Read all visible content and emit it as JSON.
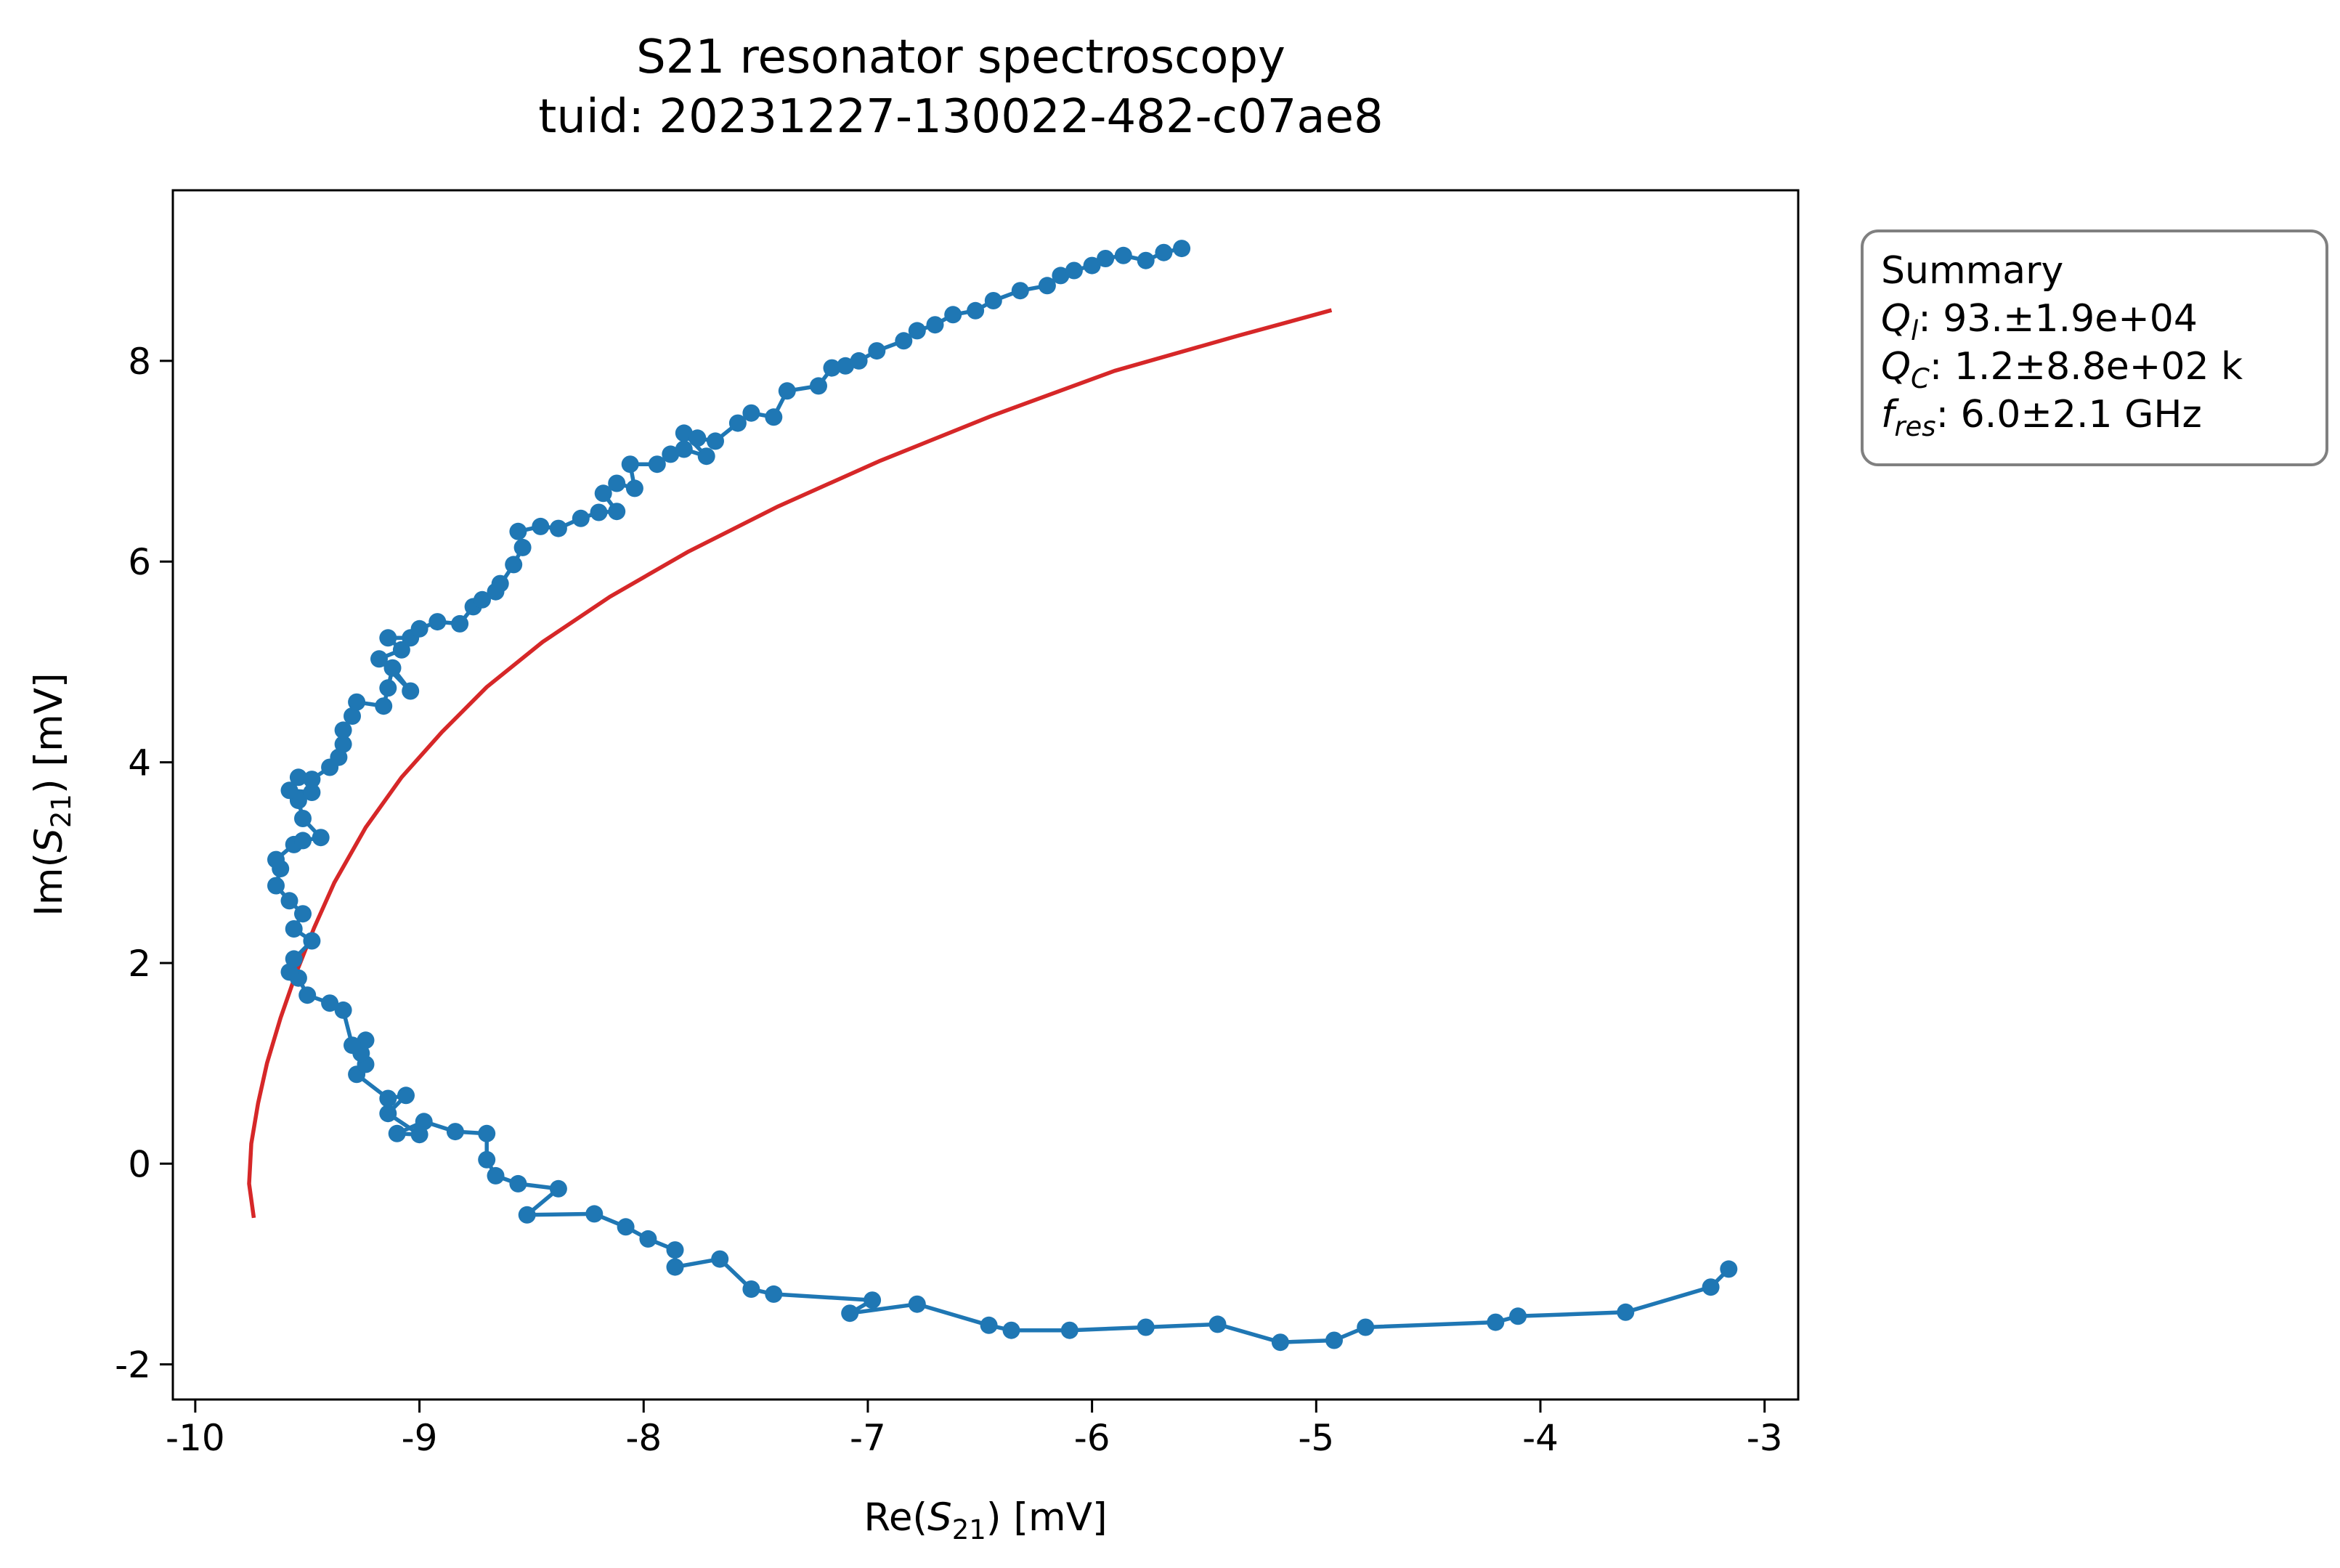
{
  "chart_data": {
    "type": "line",
    "title": "S21 resonator spectroscopy",
    "subtitle": "tuid: 20231227-130022-482-c07ae8",
    "xlabel": {
      "main": "Re(",
      "symbol": "S",
      "sub": "21",
      "tail": ") [mV]"
    },
    "ylabel": {
      "main": "Im(",
      "symbol": "S",
      "sub": "21",
      "tail": ") [mV]"
    },
    "xlim": [
      -10.1,
      -2.85
    ],
    "ylim": [
      -2.35,
      9.7
    ],
    "xticks": [
      -10,
      -9,
      -8,
      -7,
      -6,
      -5,
      -4,
      -3
    ],
    "yticks": [
      -2,
      0,
      2,
      4,
      6,
      8
    ],
    "xtick_labels": [
      "-10",
      "-9",
      "-8",
      "-7",
      "-6",
      "-5",
      "-4",
      "-3"
    ],
    "ytick_labels": [
      "-2",
      "0",
      "2",
      "4",
      "6",
      "8"
    ],
    "grid": false,
    "colors": {
      "data": "#1f77b4",
      "fit": "#d62728"
    },
    "series": [
      {
        "style": "line-marker",
        "points": [
          [
            -3.16,
            -1.05
          ],
          [
            -3.24,
            -1.23
          ],
          [
            -3.62,
            -1.48
          ],
          [
            -4.1,
            -1.52
          ],
          [
            -4.2,
            -1.58
          ],
          [
            -4.78,
            -1.63
          ],
          [
            -4.92,
            -1.76
          ],
          [
            -5.16,
            -1.78
          ],
          [
            -5.44,
            -1.6
          ],
          [
            -5.76,
            -1.63
          ],
          [
            -6.1,
            -1.66
          ],
          [
            -6.36,
            -1.66
          ],
          [
            -6.46,
            -1.61
          ],
          [
            -6.78,
            -1.4
          ],
          [
            -7.08,
            -1.49
          ],
          [
            -6.98,
            -1.36
          ],
          [
            -7.42,
            -1.3
          ],
          [
            -7.52,
            -1.25
          ],
          [
            -7.66,
            -0.95
          ],
          [
            -7.86,
            -1.03
          ],
          [
            -7.86,
            -0.86
          ],
          [
            -7.98,
            -0.75
          ],
          [
            -8.08,
            -0.63
          ],
          [
            -8.22,
            -0.5
          ],
          [
            -8.52,
            -0.51
          ],
          [
            -8.38,
            -0.25
          ],
          [
            -8.56,
            -0.2
          ],
          [
            -8.66,
            -0.12
          ],
          [
            -8.7,
            0.04
          ],
          [
            -8.7,
            0.3
          ],
          [
            -8.84,
            0.32
          ],
          [
            -8.98,
            0.42
          ],
          [
            -9.1,
            0.3
          ],
          [
            -9.0,
            0.29
          ],
          [
            -9.14,
            0.5
          ],
          [
            -9.06,
            0.68
          ],
          [
            -9.14,
            0.65
          ],
          [
            -9.28,
            0.89
          ],
          [
            -9.24,
            0.99
          ],
          [
            -9.26,
            1.1
          ],
          [
            -9.24,
            1.23
          ],
          [
            -9.3,
            1.18
          ],
          [
            -9.34,
            1.53
          ],
          [
            -9.4,
            1.6
          ],
          [
            -9.5,
            1.68
          ],
          [
            -9.54,
            1.85
          ],
          [
            -9.58,
            1.91
          ],
          [
            -9.56,
            2.04
          ],
          [
            -9.48,
            2.22
          ],
          [
            -9.56,
            2.34
          ],
          [
            -9.52,
            2.49
          ],
          [
            -9.58,
            2.62
          ],
          [
            -9.64,
            2.77
          ],
          [
            -9.62,
            2.94
          ],
          [
            -9.64,
            3.03
          ],
          [
            -9.56,
            3.18
          ],
          [
            -9.52,
            3.22
          ],
          [
            -9.44,
            3.25
          ],
          [
            -9.52,
            3.44
          ],
          [
            -9.54,
            3.62
          ],
          [
            -9.48,
            3.7
          ],
          [
            -9.58,
            3.72
          ],
          [
            -9.54,
            3.85
          ],
          [
            -9.48,
            3.83
          ],
          [
            -9.4,
            3.95
          ],
          [
            -9.36,
            4.05
          ],
          [
            -9.34,
            4.18
          ],
          [
            -9.34,
            4.32
          ],
          [
            -9.3,
            4.46
          ],
          [
            -9.28,
            4.6
          ],
          [
            -9.16,
            4.56
          ],
          [
            -9.14,
            4.74
          ],
          [
            -9.12,
            4.94
          ],
          [
            -9.04,
            4.71
          ],
          [
            -9.18,
            5.03
          ],
          [
            -9.08,
            5.12
          ],
          [
            -9.14,
            5.24
          ],
          [
            -9.04,
            5.24
          ],
          [
            -9.0,
            5.33
          ],
          [
            -8.92,
            5.4
          ],
          [
            -8.82,
            5.38
          ],
          [
            -8.76,
            5.55
          ],
          [
            -8.72,
            5.62
          ],
          [
            -8.64,
            5.78
          ],
          [
            -8.66,
            5.7
          ],
          [
            -8.58,
            5.97
          ],
          [
            -8.54,
            6.14
          ],
          [
            -8.56,
            6.3
          ],
          [
            -8.46,
            6.35
          ],
          [
            -8.38,
            6.33
          ],
          [
            -8.28,
            6.43
          ],
          [
            -8.2,
            6.49
          ],
          [
            -8.12,
            6.5
          ],
          [
            -8.18,
            6.68
          ],
          [
            -8.12,
            6.78
          ],
          [
            -8.04,
            6.73
          ],
          [
            -8.06,
            6.97
          ],
          [
            -7.94,
            6.97
          ],
          [
            -7.88,
            7.07
          ],
          [
            -7.82,
            7.12
          ],
          [
            -7.72,
            7.05
          ],
          [
            -7.82,
            7.28
          ],
          [
            -7.76,
            7.23
          ],
          [
            -7.68,
            7.2
          ],
          [
            -7.58,
            7.38
          ],
          [
            -7.52,
            7.48
          ],
          [
            -7.42,
            7.44
          ],
          [
            -7.36,
            7.7
          ],
          [
            -7.22,
            7.75
          ],
          [
            -7.16,
            7.93
          ],
          [
            -7.1,
            7.95
          ],
          [
            -7.04,
            8.0
          ],
          [
            -6.96,
            8.1
          ],
          [
            -6.84,
            8.2
          ],
          [
            -6.78,
            8.3
          ],
          [
            -6.7,
            8.36
          ],
          [
            -6.62,
            8.46
          ],
          [
            -6.52,
            8.5
          ],
          [
            -6.44,
            8.6
          ],
          [
            -6.32,
            8.7
          ],
          [
            -6.2,
            8.75
          ],
          [
            -6.14,
            8.85
          ],
          [
            -6.08,
            8.9
          ],
          [
            -6.0,
            8.95
          ],
          [
            -5.94,
            9.02
          ],
          [
            -5.86,
            9.05
          ],
          [
            -5.76,
            9.0
          ],
          [
            -5.68,
            9.08
          ],
          [
            -5.6,
            9.12
          ]
        ]
      },
      {
        "style": "line",
        "points": [
          [
            -9.74,
            -0.52
          ],
          [
            -9.76,
            -0.2
          ],
          [
            -9.75,
            0.2
          ],
          [
            -9.72,
            0.6
          ],
          [
            -9.68,
            1.0
          ],
          [
            -9.62,
            1.45
          ],
          [
            -9.55,
            1.9
          ],
          [
            -9.47,
            2.35
          ],
          [
            -9.38,
            2.8
          ],
          [
            -9.24,
            3.35
          ],
          [
            -9.08,
            3.85
          ],
          [
            -8.9,
            4.3
          ],
          [
            -8.7,
            4.75
          ],
          [
            -8.45,
            5.2
          ],
          [
            -8.15,
            5.65
          ],
          [
            -7.8,
            6.1
          ],
          [
            -7.4,
            6.55
          ],
          [
            -6.95,
            7.0
          ],
          [
            -6.45,
            7.45
          ],
          [
            -5.9,
            7.9
          ],
          [
            -5.35,
            8.25
          ],
          [
            -4.94,
            8.5
          ]
        ]
      }
    ],
    "summary": {
      "heading": "Summary",
      "lines": [
        {
          "sym": "Q",
          "sub": "l",
          "text": ": 93.±1.9e+04"
        },
        {
          "sym": "Q",
          "sub": "C",
          "text": ": 1.2±8.8e+02 k"
        },
        {
          "sym": "f",
          "sub": "res",
          "text": ": 6.0±2.1 GHz"
        }
      ]
    }
  }
}
